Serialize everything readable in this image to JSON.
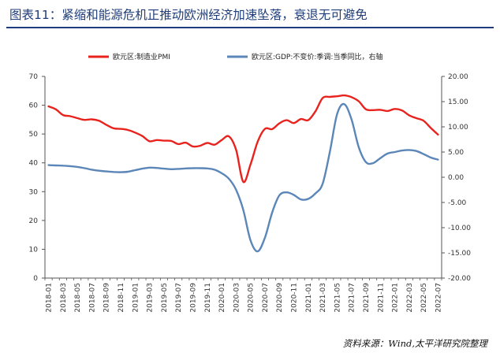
{
  "title": "图表11：紧缩和能源危机正推动欧洲经济加速坠落，衰退无可避免",
  "source": "资料来源：Wind,太平洋研究院整理",
  "chart_data": {
    "type": "line",
    "x": [
      "2018-01",
      "2018-02",
      "2018-03",
      "2018-04",
      "2018-05",
      "2018-06",
      "2018-07",
      "2018-08",
      "2018-09",
      "2018-10",
      "2018-11",
      "2018-12",
      "2019-01",
      "2019-02",
      "2019-03",
      "2019-04",
      "2019-05",
      "2019-06",
      "2019-07",
      "2019-08",
      "2019-09",
      "2019-10",
      "2019-11",
      "2019-12",
      "2020-01",
      "2020-02",
      "2020-03",
      "2020-04",
      "2020-05",
      "2020-06",
      "2020-07",
      "2020-08",
      "2020-09",
      "2020-10",
      "2020-11",
      "2020-12",
      "2021-01",
      "2021-02",
      "2021-03",
      "2021-04",
      "2021-05",
      "2021-06",
      "2021-07",
      "2021-08",
      "2021-09",
      "2021-10",
      "2021-11",
      "2021-12",
      "2022-01",
      "2022-02",
      "2022-03",
      "2022-04",
      "2022-05",
      "2022-06",
      "2022-07"
    ],
    "x_tick_labels": [
      "2018-01",
      "2018-03",
      "2018-05",
      "2018-07",
      "2018-09",
      "2018-11",
      "2019-01",
      "2019-03",
      "2019-05",
      "2019-07",
      "2019-09",
      "2019-11",
      "2020-01",
      "2020-03",
      "2020-05",
      "2020-07",
      "2020-09",
      "2020-11",
      "2021-01",
      "2021-03",
      "2021-05",
      "2021-07",
      "2021-09",
      "2021-11",
      "2022-01",
      "2022-03",
      "2022-05",
      "2022-07"
    ],
    "left_axis": {
      "ylim": [
        0,
        70
      ],
      "ticks": [
        "0",
        "10",
        "20",
        "30",
        "40",
        "50",
        "60",
        "70"
      ]
    },
    "right_axis": {
      "ylim": [
        -20,
        20
      ],
      "ticks": [
        "-20.00",
        "-15.00",
        "-10.00",
        "-5.00",
        "0.00",
        "5.00",
        "10.00",
        "15.00",
        "20.00"
      ]
    },
    "series": [
      {
        "name": "欧元区:制造业PMI",
        "axis": "left",
        "color": "#e8231e",
        "values": [
          59.6,
          58.6,
          56.6,
          56.2,
          55.5,
          54.9,
          55.1,
          54.6,
          53.2,
          52.0,
          51.8,
          51.4,
          50.5,
          49.3,
          47.5,
          47.9,
          47.7,
          47.6,
          46.5,
          47.0,
          45.7,
          45.9,
          46.9,
          46.3,
          47.9,
          49.2,
          44.5,
          33.4,
          39.4,
          47.4,
          51.8,
          51.7,
          53.7,
          54.8,
          53.8,
          55.2,
          54.8,
          57.9,
          62.5,
          62.9,
          63.1,
          63.4,
          62.8,
          61.4,
          58.6,
          58.3,
          58.4,
          58.0,
          58.7,
          58.2,
          56.5,
          55.5,
          54.6,
          52.1,
          49.8
        ]
      },
      {
        "name": "欧元区:GDP:不变价:季调:当季同比，右轴",
        "axis": "right",
        "color": "#5b86b8",
        "values": [
          2.4,
          2.35,
          2.3,
          2.2,
          2.05,
          1.8,
          1.5,
          1.3,
          1.15,
          1.05,
          1.0,
          1.1,
          1.4,
          1.7,
          1.9,
          1.85,
          1.7,
          1.6,
          1.65,
          1.75,
          1.8,
          1.8,
          1.75,
          1.5,
          0.8,
          -0.3,
          -2.5,
          -6.5,
          -12.5,
          -14.7,
          -12.0,
          -7.0,
          -3.6,
          -3.0,
          -3.5,
          -4.4,
          -4.3,
          -3.2,
          -1.3,
          5.0,
          12.5,
          14.5,
          11.5,
          6.0,
          3.0,
          2.8,
          3.8,
          4.7,
          5.0,
          5.3,
          5.4,
          5.2,
          4.6,
          3.9,
          3.5
        ]
      }
    ],
    "legend": "top",
    "grid": false
  }
}
